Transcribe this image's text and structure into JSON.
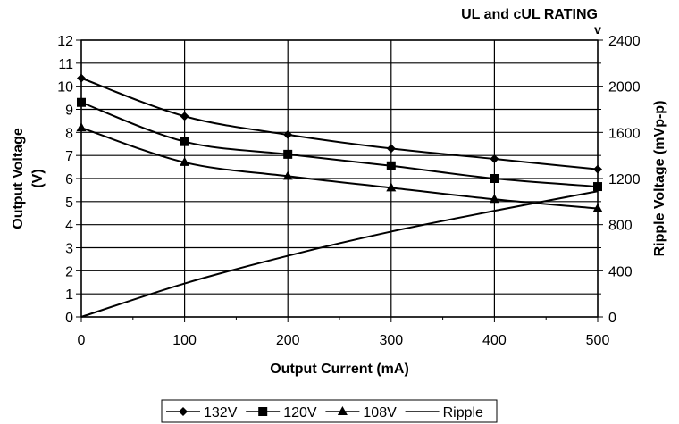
{
  "chart_data": {
    "type": "line",
    "title": "UL and cUL RATING",
    "title_mark": "v",
    "xlabel": "Output Current (mA)",
    "ylabel": "Output Voltage (V)",
    "ylabel_lines": [
      "Output Voltage",
      "(V)"
    ],
    "y2label": "Ripple Voltage (mVp-p)",
    "xlim": [
      0,
      500
    ],
    "ylim": [
      0,
      12
    ],
    "y2lim": [
      0,
      2400
    ],
    "x_ticks": [
      0,
      100,
      200,
      300,
      400,
      500
    ],
    "y_ticks": [
      0,
      1,
      2,
      3,
      4,
      5,
      6,
      7,
      8,
      9,
      10,
      11,
      12
    ],
    "y2_ticks": [
      0,
      400,
      800,
      1200,
      1600,
      2000,
      2400
    ],
    "grid": true,
    "legend_position": "bottom",
    "series": [
      {
        "name": "132V",
        "marker": "diamond",
        "axis": "left",
        "x": [
          0,
          100,
          200,
          300,
          400,
          500
        ],
        "values": [
          10.35,
          8.7,
          7.9,
          7.3,
          6.85,
          6.4
        ]
      },
      {
        "name": "120V",
        "marker": "square",
        "axis": "left",
        "x": [
          0,
          100,
          200,
          300,
          400,
          500
        ],
        "values": [
          9.3,
          7.6,
          7.05,
          6.55,
          6.0,
          5.65
        ]
      },
      {
        "name": "108V",
        "marker": "triangle",
        "axis": "left",
        "x": [
          0,
          100,
          200,
          300,
          400,
          500
        ],
        "values": [
          8.2,
          6.7,
          6.1,
          5.6,
          5.1,
          4.7
        ]
      },
      {
        "name": "Ripple",
        "marker": "none",
        "axis": "right",
        "x": [
          0,
          100,
          200,
          300,
          400,
          500
        ],
        "values": [
          0,
          290,
          530,
          740,
          920,
          1090
        ]
      }
    ]
  }
}
